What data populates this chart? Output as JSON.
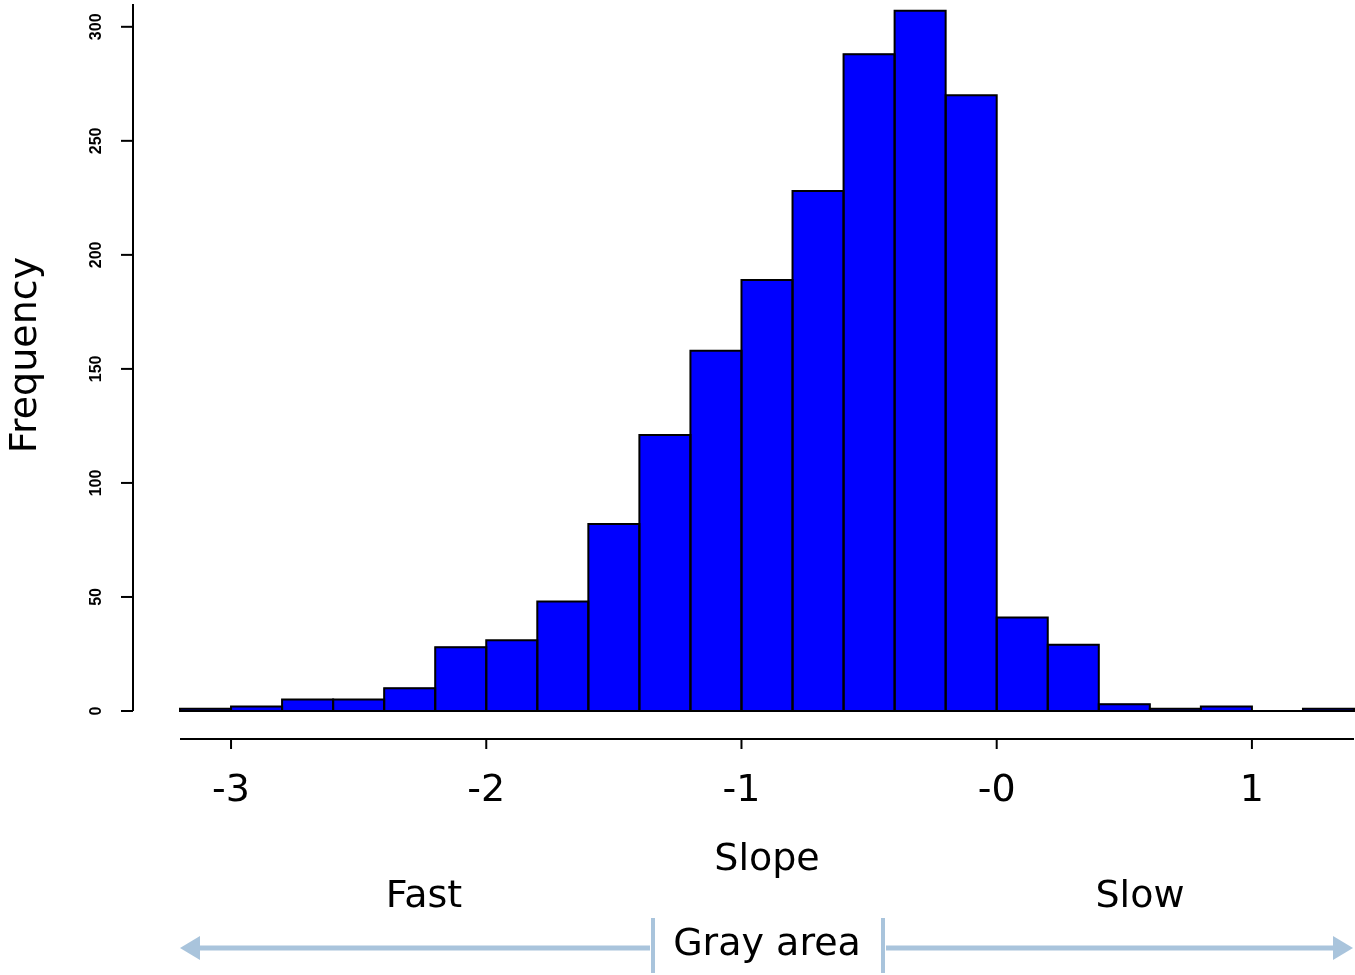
{
  "chart_data": {
    "type": "histogram",
    "xlabel": "Slope",
    "ylabel": "Frequency",
    "bins": [
      -3.2,
      -3.0,
      -2.8,
      -2.6,
      -2.4,
      -2.2,
      -2.0,
      -1.8,
      -1.6,
      -1.4,
      -1.2,
      -1.0,
      -0.8,
      -0.6,
      -0.4,
      -0.2,
      0,
      0.2,
      0.4,
      0.6,
      0.8,
      1.0,
      1.2,
      1.4
    ],
    "values": [
      1,
      2,
      5,
      5,
      10,
      28,
      31,
      48,
      82,
      121,
      158,
      189,
      228,
      288,
      307,
      270,
      41,
      29,
      3,
      1,
      2,
      0,
      1
    ],
    "color": "#0000ff",
    "xlim": [
      -3.2,
      1.4
    ],
    "xticks": [
      -3,
      -2,
      -1,
      {
        "value": 0,
        "label": "-0"
      },
      1
    ],
    "ylim": [
      0,
      310
    ],
    "yticks": [
      0,
      50,
      100,
      150,
      200,
      250,
      300
    ],
    "grid": false,
    "legend": false,
    "annotations": [
      "Fast",
      "Slow",
      "Gray area"
    ]
  }
}
